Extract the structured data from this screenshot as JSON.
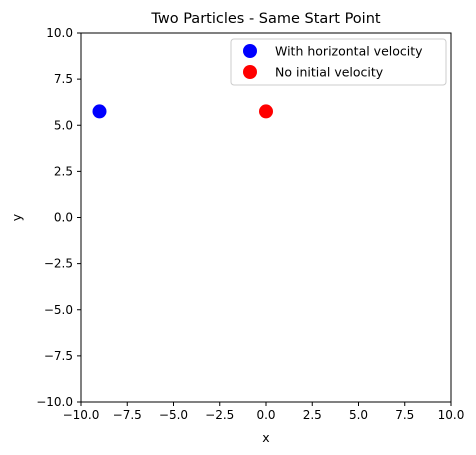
{
  "chart_data": {
    "type": "scatter",
    "title": "Two Particles - Same Start Point",
    "xlabel": "x",
    "ylabel": "y",
    "xlim": [
      -10,
      10
    ],
    "ylim": [
      -10,
      10
    ],
    "x_ticks": [
      -10,
      -7.5,
      -5,
      -2.5,
      0,
      2.5,
      5,
      7.5,
      10
    ],
    "x_tick_labels": [
      "−10.0",
      "−7.5",
      "−5.0",
      "−2.5",
      "0.0",
      "2.5",
      "5.0",
      "7.5",
      "10.0"
    ],
    "y_ticks": [
      -10,
      -7.5,
      -5,
      -2.5,
      0,
      2.5,
      5,
      7.5,
      10
    ],
    "y_tick_labels": [
      "−10.0",
      "−7.5",
      "−5.0",
      "−2.5",
      "0.0",
      "2.5",
      "5.0",
      "7.5",
      "10.0"
    ],
    "grid": false,
    "legend_position": "top-right",
    "series": [
      {
        "name": "With horizontal velocity",
        "color": "#0000ff",
        "points": [
          {
            "x": -9.0,
            "y": 5.75
          }
        ]
      },
      {
        "name": "No initial velocity",
        "color": "#ff0000",
        "points": [
          {
            "x": 0.0,
            "y": 5.75
          }
        ]
      }
    ]
  }
}
